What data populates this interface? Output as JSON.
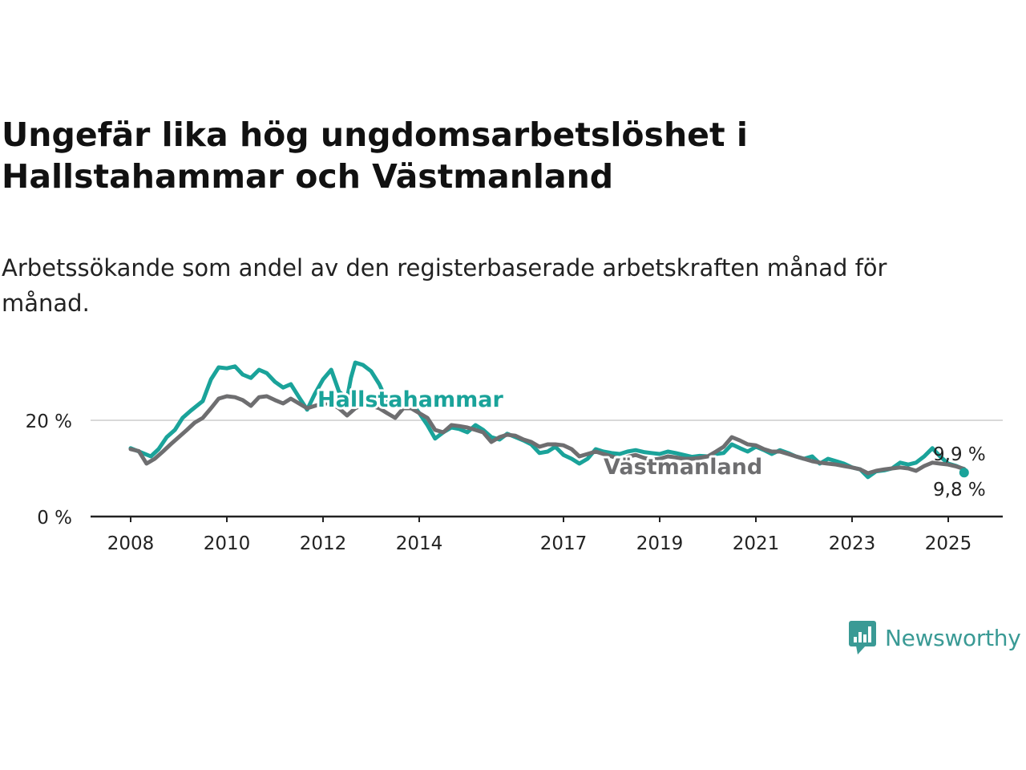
{
  "header": {
    "title": "Ungefär lika hög ungdomsarbetslöshet i Hallstahammar och Västmanland",
    "subtitle": "Arbetssökande som andel av den registerbaserade arbetskraften månad för månad."
  },
  "brand": {
    "name": "Newsworthy",
    "color": "#3a9a95",
    "icon": "newsworthy-logo-icon"
  },
  "chart_data": {
    "type": "line",
    "title": "Ungefär lika hög ungdomsarbetslöshet i Hallstahammar och Västmanland",
    "subtitle": "Arbetssökande som andel av den registerbaserade arbetskraften månad för månad.",
    "xlabel": "",
    "ylabel": "",
    "x_unit": "year",
    "xlim": [
      2008,
      2026.1
    ],
    "ylim": [
      0,
      30
    ],
    "y_ticks": [
      0,
      20
    ],
    "y_tick_labels": [
      "0 %",
      "20 %"
    ],
    "x_ticks": [
      2008,
      2010,
      2012,
      2014,
      2017,
      2019,
      2021,
      2023,
      2025
    ],
    "x_tick_labels": [
      "2008",
      "2010",
      "2012",
      "2014",
      "2017",
      "2019",
      "2021",
      "2023",
      "2025"
    ],
    "grid": "horizontal",
    "legend": "inline labels",
    "series": [
      {
        "name": "Hallstahammar",
        "color": "#1aa39a",
        "end_label": "9,8 %",
        "points": [
          [
            2008.0,
            14.2
          ],
          [
            2008.25,
            13.2
          ],
          [
            2008.42,
            12.5
          ],
          [
            2008.58,
            14.0
          ],
          [
            2008.75,
            16.5
          ],
          [
            2008.92,
            18.0
          ],
          [
            2009.08,
            20.5
          ],
          [
            2009.25,
            22.0
          ],
          [
            2009.5,
            24.0
          ],
          [
            2009.67,
            28.5
          ],
          [
            2009.83,
            31.0
          ],
          [
            2010.0,
            30.8
          ],
          [
            2010.17,
            31.2
          ],
          [
            2010.33,
            29.5
          ],
          [
            2010.5,
            28.8
          ],
          [
            2010.67,
            30.5
          ],
          [
            2010.83,
            29.8
          ],
          [
            2011.0,
            28.0
          ],
          [
            2011.17,
            26.8
          ],
          [
            2011.33,
            27.5
          ],
          [
            2011.5,
            24.8
          ],
          [
            2011.67,
            22.2
          ],
          [
            2011.83,
            25.5
          ],
          [
            2012.0,
            28.5
          ],
          [
            2012.17,
            30.5
          ],
          [
            2012.33,
            26.0
          ],
          [
            2012.5,
            24.5
          ],
          [
            2012.58,
            28.8
          ],
          [
            2012.67,
            32.0
          ],
          [
            2012.83,
            31.5
          ],
          [
            2013.0,
            30.2
          ],
          [
            2013.17,
            27.5
          ],
          [
            2013.33,
            24.0
          ],
          [
            2013.5,
            23.5
          ],
          [
            2013.67,
            22.5
          ],
          [
            2013.83,
            23.8
          ],
          [
            2014.0,
            21.5
          ],
          [
            2014.17,
            19.0
          ],
          [
            2014.33,
            16.2
          ],
          [
            2014.5,
            17.5
          ],
          [
            2014.67,
            18.5
          ],
          [
            2014.83,
            18.2
          ],
          [
            2015.0,
            17.5
          ],
          [
            2015.17,
            19.0
          ],
          [
            2015.33,
            18.0
          ],
          [
            2015.5,
            16.5
          ],
          [
            2015.67,
            16.0
          ],
          [
            2015.83,
            17.2
          ],
          [
            2016.0,
            16.5
          ],
          [
            2016.17,
            15.8
          ],
          [
            2016.33,
            15.0
          ],
          [
            2016.5,
            13.2
          ],
          [
            2016.67,
            13.5
          ],
          [
            2016.83,
            14.5
          ],
          [
            2017.0,
            12.8
          ],
          [
            2017.17,
            12.0
          ],
          [
            2017.33,
            11.0
          ],
          [
            2017.5,
            12.0
          ],
          [
            2017.67,
            14.0
          ],
          [
            2017.83,
            13.5
          ],
          [
            2018.0,
            13.2
          ],
          [
            2018.17,
            13.0
          ],
          [
            2018.33,
            13.5
          ],
          [
            2018.5,
            13.8
          ],
          [
            2018.67,
            13.4
          ],
          [
            2018.83,
            13.2
          ],
          [
            2019.0,
            13.0
          ],
          [
            2019.17,
            13.5
          ],
          [
            2019.33,
            13.2
          ],
          [
            2019.5,
            12.8
          ],
          [
            2019.67,
            12.4
          ],
          [
            2019.83,
            12.6
          ],
          [
            2020.0,
            12.5
          ],
          [
            2020.17,
            13.0
          ],
          [
            2020.33,
            13.2
          ],
          [
            2020.5,
            15.0
          ],
          [
            2020.67,
            14.2
          ],
          [
            2020.83,
            13.5
          ],
          [
            2021.0,
            14.5
          ],
          [
            2021.17,
            13.8
          ],
          [
            2021.33,
            13.0
          ],
          [
            2021.5,
            13.8
          ],
          [
            2021.67,
            13.2
          ],
          [
            2021.83,
            12.5
          ],
          [
            2022.0,
            12.0
          ],
          [
            2022.17,
            12.5
          ],
          [
            2022.33,
            11.0
          ],
          [
            2022.5,
            12.0
          ],
          [
            2022.67,
            11.5
          ],
          [
            2022.83,
            11.0
          ],
          [
            2023.0,
            10.2
          ],
          [
            2023.17,
            9.8
          ],
          [
            2023.33,
            8.2
          ],
          [
            2023.5,
            9.4
          ],
          [
            2023.67,
            9.6
          ],
          [
            2023.83,
            10.0
          ],
          [
            2024.0,
            11.2
          ],
          [
            2024.17,
            10.8
          ],
          [
            2024.33,
            11.2
          ],
          [
            2024.5,
            12.5
          ],
          [
            2024.67,
            14.2
          ],
          [
            2024.83,
            12.5
          ],
          [
            2025.0,
            11.0
          ],
          [
            2025.17,
            10.5
          ],
          [
            2025.33,
            9.8
          ]
        ]
      },
      {
        "name": "Västmanland",
        "color": "#6e6e70",
        "end_label": "9,9 %",
        "points": [
          [
            2008.0,
            14.0
          ],
          [
            2008.17,
            13.6
          ],
          [
            2008.33,
            11.0
          ],
          [
            2008.5,
            12.0
          ],
          [
            2008.67,
            13.5
          ],
          [
            2008.83,
            15.0
          ],
          [
            2009.0,
            16.5
          ],
          [
            2009.17,
            18.0
          ],
          [
            2009.33,
            19.5
          ],
          [
            2009.5,
            20.5
          ],
          [
            2009.67,
            22.5
          ],
          [
            2009.83,
            24.5
          ],
          [
            2010.0,
            25.0
          ],
          [
            2010.17,
            24.8
          ],
          [
            2010.33,
            24.2
          ],
          [
            2010.5,
            23.0
          ],
          [
            2010.67,
            24.8
          ],
          [
            2010.83,
            25.0
          ],
          [
            2011.0,
            24.2
          ],
          [
            2011.17,
            23.5
          ],
          [
            2011.33,
            24.5
          ],
          [
            2011.5,
            23.5
          ],
          [
            2011.67,
            22.5
          ],
          [
            2011.83,
            23.0
          ],
          [
            2012.0,
            23.5
          ],
          [
            2012.17,
            23.5
          ],
          [
            2012.33,
            22.5
          ],
          [
            2012.5,
            21.0
          ],
          [
            2012.67,
            22.5
          ],
          [
            2012.83,
            23.2
          ],
          [
            2013.0,
            23.0
          ],
          [
            2013.17,
            22.5
          ],
          [
            2013.33,
            21.5
          ],
          [
            2013.5,
            20.5
          ],
          [
            2013.67,
            22.5
          ],
          [
            2013.83,
            22.5
          ],
          [
            2014.0,
            21.5
          ],
          [
            2014.17,
            20.5
          ],
          [
            2014.33,
            18.0
          ],
          [
            2014.5,
            17.5
          ],
          [
            2014.67,
            19.0
          ],
          [
            2014.83,
            18.8
          ],
          [
            2015.0,
            18.5
          ],
          [
            2015.17,
            18.0
          ],
          [
            2015.33,
            17.5
          ],
          [
            2015.5,
            15.5
          ],
          [
            2015.67,
            16.5
          ],
          [
            2015.83,
            17.0
          ],
          [
            2016.0,
            16.8
          ],
          [
            2016.17,
            16.0
          ],
          [
            2016.33,
            15.5
          ],
          [
            2016.5,
            14.5
          ],
          [
            2016.67,
            15.0
          ],
          [
            2016.83,
            15.0
          ],
          [
            2017.0,
            14.8
          ],
          [
            2017.17,
            14.0
          ],
          [
            2017.33,
            12.5
          ],
          [
            2017.5,
            13.0
          ],
          [
            2017.67,
            13.5
          ],
          [
            2017.83,
            13.0
          ],
          [
            2018.0,
            12.5
          ],
          [
            2018.17,
            12.0
          ],
          [
            2018.33,
            12.4
          ],
          [
            2018.5,
            12.8
          ],
          [
            2018.67,
            12.2
          ],
          [
            2018.83,
            11.8
          ],
          [
            2019.0,
            12.0
          ],
          [
            2019.17,
            12.5
          ],
          [
            2019.33,
            12.3
          ],
          [
            2019.5,
            12.0
          ],
          [
            2019.67,
            12.0
          ],
          [
            2019.83,
            12.2
          ],
          [
            2020.0,
            12.5
          ],
          [
            2020.17,
            13.5
          ],
          [
            2020.33,
            14.5
          ],
          [
            2020.5,
            16.5
          ],
          [
            2020.67,
            15.8
          ],
          [
            2020.83,
            15.0
          ],
          [
            2021.0,
            14.8
          ],
          [
            2021.17,
            14.0
          ],
          [
            2021.33,
            13.5
          ],
          [
            2021.5,
            13.5
          ],
          [
            2021.67,
            13.0
          ],
          [
            2021.83,
            12.5
          ],
          [
            2022.0,
            12.0
          ],
          [
            2022.17,
            11.5
          ],
          [
            2022.33,
            11.2
          ],
          [
            2022.5,
            11.0
          ],
          [
            2022.67,
            10.8
          ],
          [
            2022.83,
            10.5
          ],
          [
            2023.0,
            10.2
          ],
          [
            2023.17,
            9.8
          ],
          [
            2023.33,
            9.0
          ],
          [
            2023.5,
            9.5
          ],
          [
            2023.67,
            9.8
          ],
          [
            2023.83,
            10.0
          ],
          [
            2024.0,
            10.2
          ],
          [
            2024.17,
            10.0
          ],
          [
            2024.33,
            9.5
          ],
          [
            2024.5,
            10.5
          ],
          [
            2024.67,
            11.2
          ],
          [
            2024.83,
            11.0
          ],
          [
            2025.0,
            10.8
          ],
          [
            2025.17,
            10.4
          ],
          [
            2025.33,
            9.9
          ]
        ]
      }
    ]
  }
}
